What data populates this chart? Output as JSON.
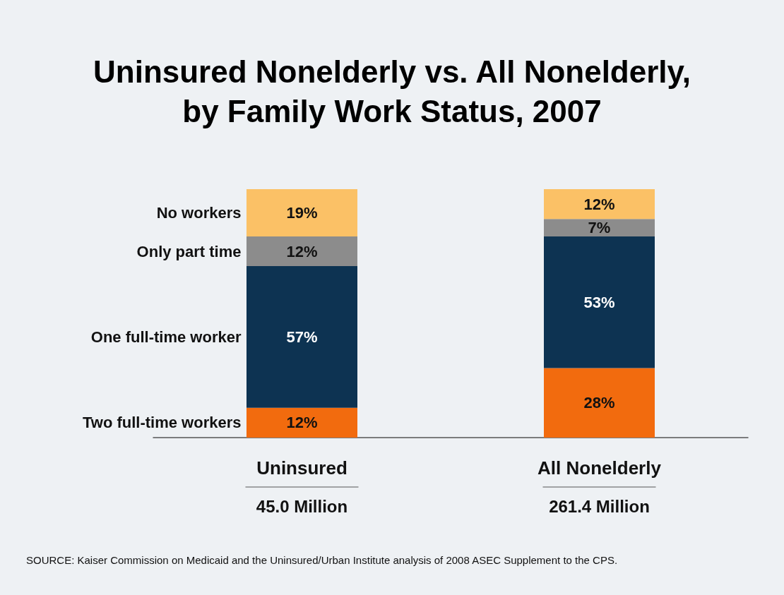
{
  "chart_data": {
    "type": "bar",
    "title": "Uninsured Nonelderly vs. All Nonelderly,\nby Family Work Status, 2007",
    "categories": [
      "Uninsured",
      "All Nonelderly"
    ],
    "stacked": true,
    "legend": false,
    "series": [
      {
        "name": "Two full-time workers",
        "color": "#f26b0e",
        "values": [
          12,
          28
        ],
        "value_labels": [
          "12%",
          "28%"
        ]
      },
      {
        "name": "One full-time worker",
        "color": "#0d3352",
        "values": [
          57,
          53
        ],
        "value_labels": [
          "57%",
          "53%"
        ]
      },
      {
        "name": "Only part time",
        "color": "#8c8c8c",
        "values": [
          12,
          7
        ],
        "value_labels": [
          "12%",
          "7%"
        ]
      },
      {
        "name": "No workers",
        "color": "#fbc166",
        "values": [
          19,
          12
        ],
        "value_labels": [
          "19%",
          "12%"
        ]
      }
    ],
    "annotations": [
      "45.0 Million",
      "261.4 Million",
      "SOURCE: Kaiser Commission on Medicaid and the Uninsured/Urban Institute analysis of 2008 ASEC Supplement to the CPS."
    ]
  }
}
